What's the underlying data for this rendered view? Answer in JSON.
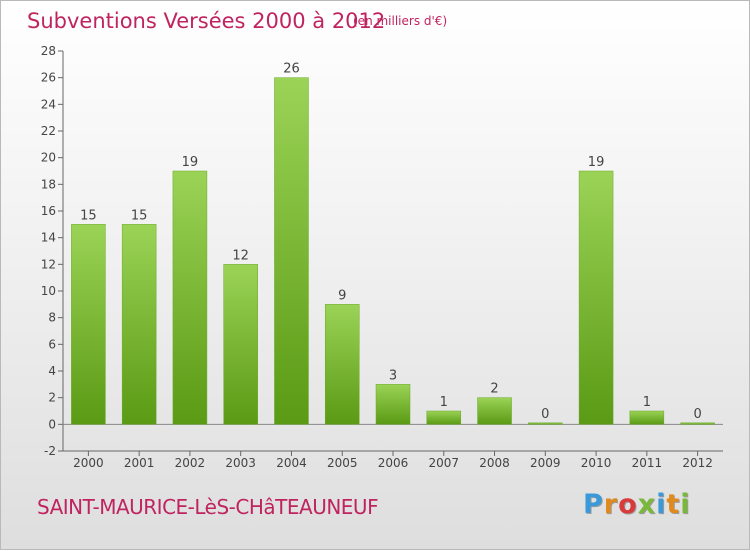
{
  "title": "Subventions Versées 2000 à 2012",
  "units": "(en milliers d'€)",
  "town": "SAINT-MAURICE-LèS-CHâTEAUNEUF",
  "logo": {
    "letters": [
      "P",
      "r",
      "o",
      "x",
      "i",
      "t",
      "i"
    ],
    "colors": [
      "#3a9ad9",
      "#e08a1e",
      "#d93a3a",
      "#7ab83a",
      "#3a9ad9",
      "#e08a1e",
      "#7ab83a"
    ]
  },
  "colors": {
    "accent": "#c0245f",
    "bar_top": "#9bd356",
    "bar_bottom": "#5a9a14"
  },
  "chart_data": {
    "type": "bar",
    "categories": [
      "2000",
      "2001",
      "2002",
      "2003",
      "2004",
      "2005",
      "2006",
      "2007",
      "2008",
      "2009",
      "2010",
      "2011",
      "2012"
    ],
    "values": [
      15,
      15,
      19,
      12,
      26,
      9,
      3,
      1,
      2,
      0,
      19,
      1,
      0
    ],
    "title": "Subventions Versées 2000 à 2012",
    "xlabel": "",
    "ylabel": "",
    "ylim": [
      -2,
      28
    ],
    "yticks": [
      -2,
      0,
      2,
      4,
      6,
      8,
      10,
      12,
      14,
      16,
      18,
      20,
      22,
      24,
      26,
      28
    ],
    "grid": false,
    "data_labels": true
  }
}
